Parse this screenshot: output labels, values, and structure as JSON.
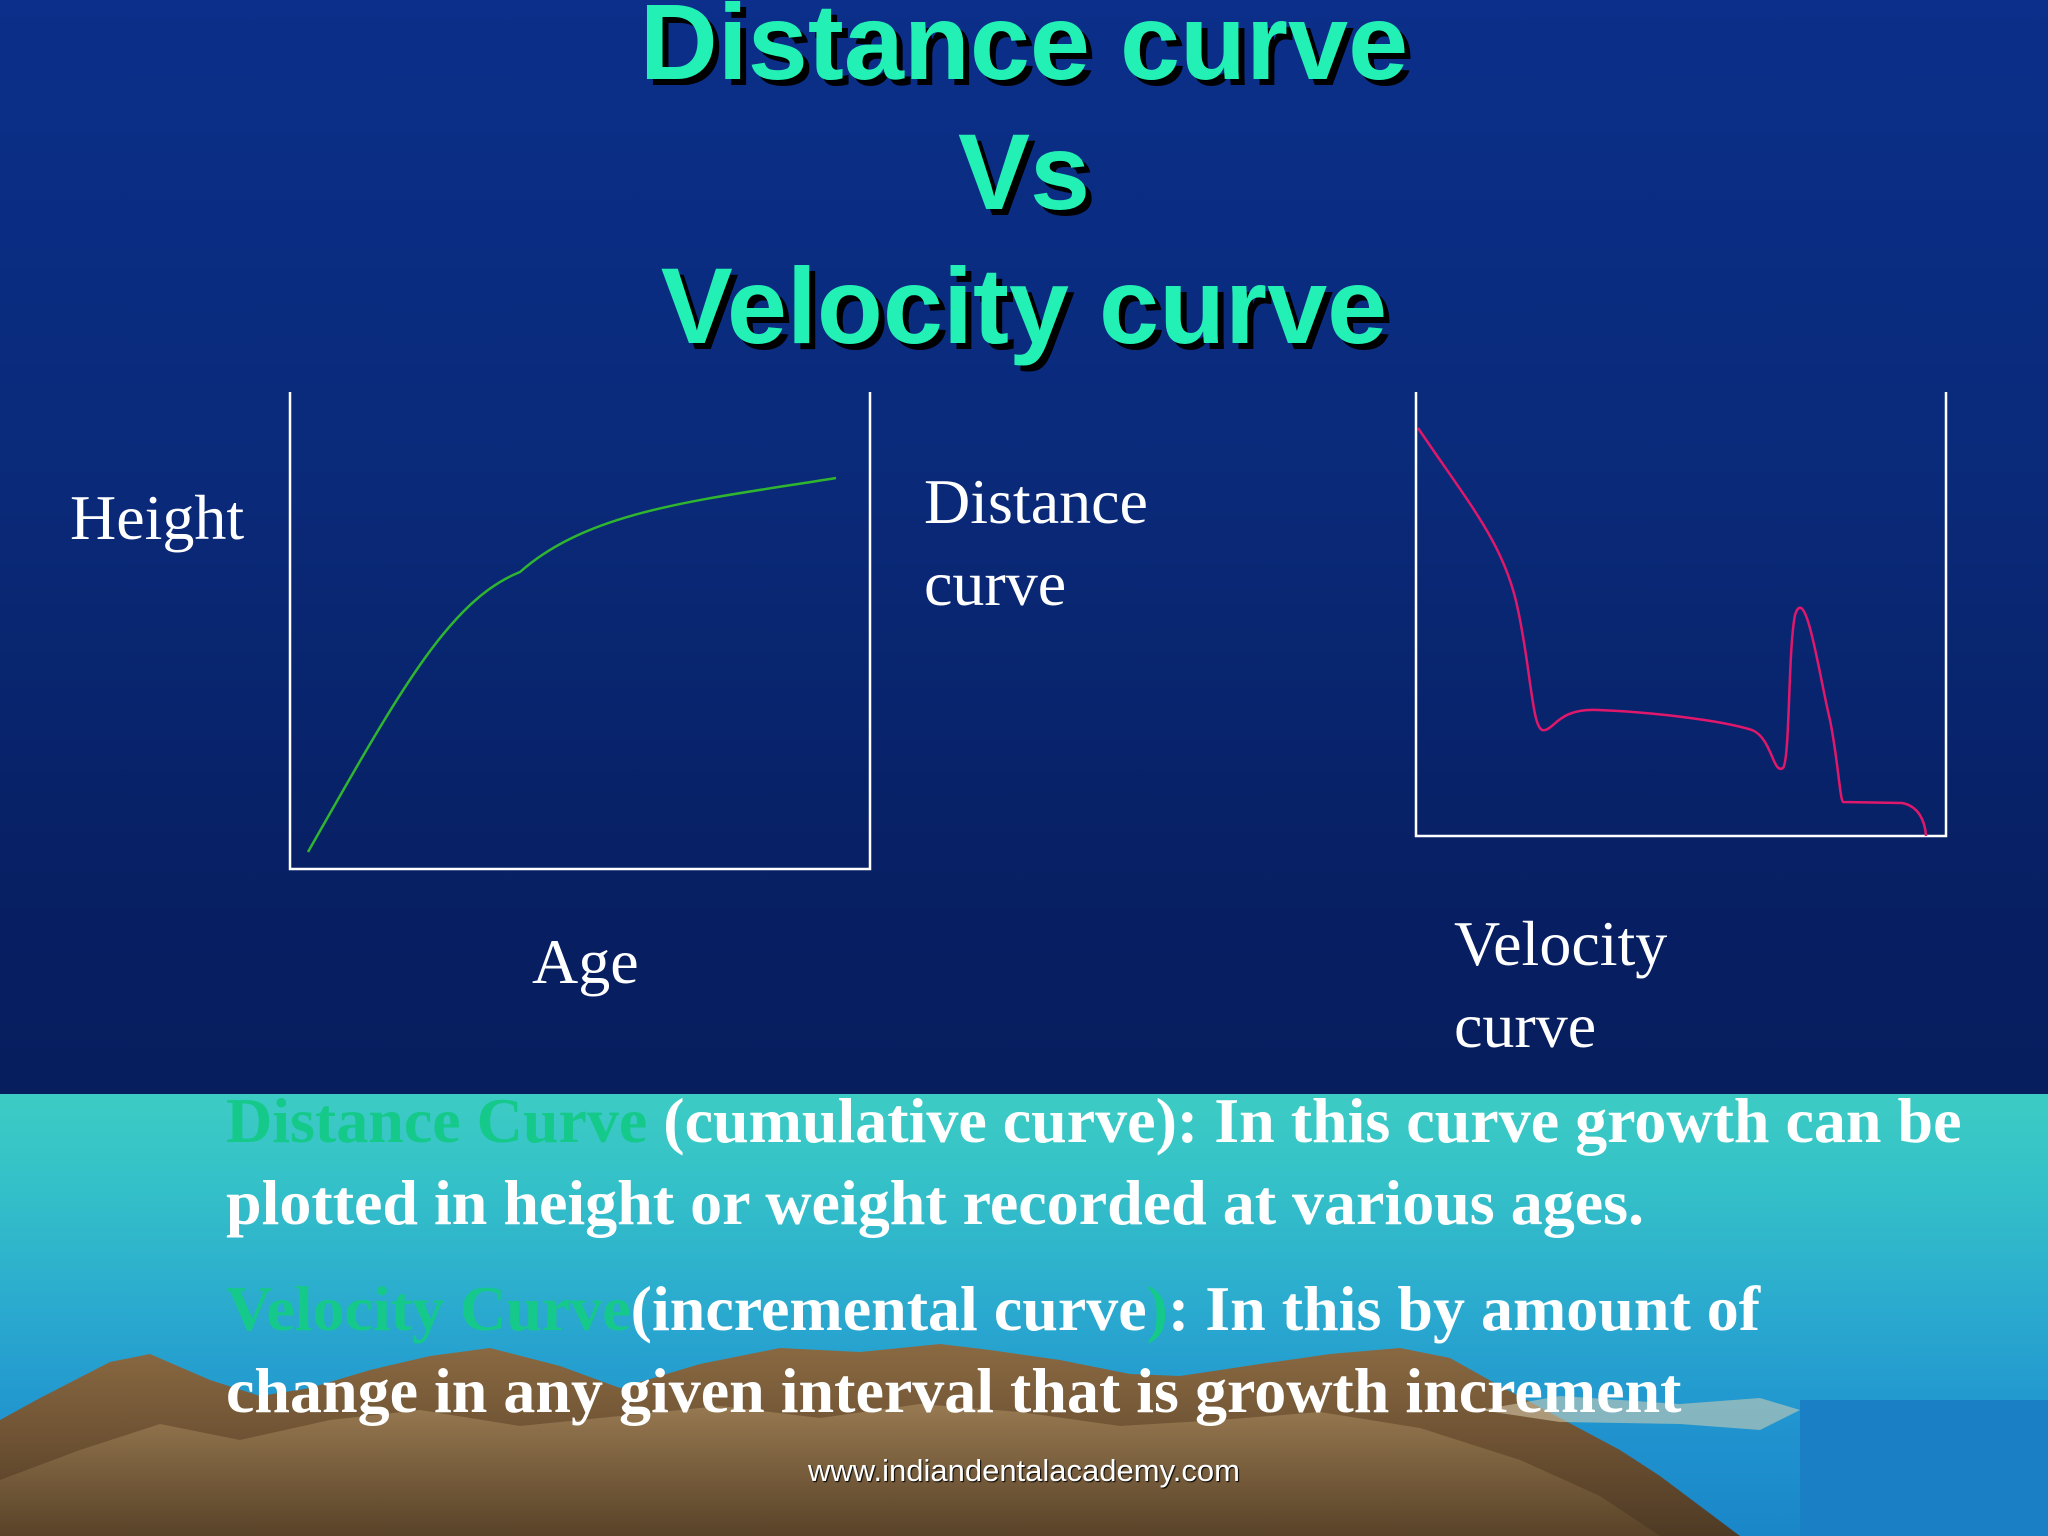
{
  "title": {
    "line1": "Distance curve",
    "line2": "Vs",
    "line3": "Velocity curve"
  },
  "distance_graph": {
    "y_label": "Height",
    "x_label": "Age",
    "caption_line1": "Distance",
    "caption_line2": "curve",
    "curve_color": "#2fb52f"
  },
  "velocity_graph": {
    "caption_line1": "Velocity",
    "caption_line2": "curve",
    "curve_color": "#e0186b"
  },
  "body": {
    "distance_term": "Distance Curve",
    "distance_text": " (cumulative curve): In this curve growth can be plotted in height or weight recorded at various ages.",
    "velocity_term": "Velocity Curve",
    "velocity_text_1": "(incremental curve",
    "velocity_paren": ")",
    "velocity_text_2": ":  In this by amount of change in any given interval that is growth increment"
  },
  "watermark": "www.indiandentalacademy.com",
  "colors": {
    "title": "#22f0b4",
    "accent_term": "#15c98a",
    "axis": "#ffffff",
    "background_top": "#0b2f8a",
    "band": "#34c1c8"
  }
}
